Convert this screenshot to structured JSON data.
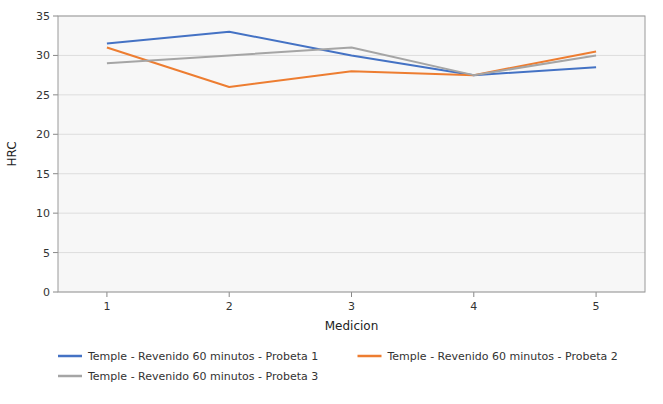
{
  "chart_data": {
    "type": "line",
    "x": [
      1,
      2,
      3,
      4,
      5
    ],
    "series": [
      {
        "name": "Temple - Revenido 60 minutos - Probeta 1",
        "color": "#4472C4",
        "values": [
          31.5,
          33.0,
          30.0,
          27.5,
          28.5
        ]
      },
      {
        "name": "Temple - Revenido 60 minutos - Probeta 2",
        "color": "#ED7D31",
        "values": [
          31.0,
          26.0,
          28.0,
          27.5,
          30.5
        ]
      },
      {
        "name": "Temple - Revenido 60 minutos - Probeta 3",
        "color": "#A5A5A5",
        "values": [
          29.0,
          30.0,
          31.0,
          27.5,
          30.0
        ]
      }
    ],
    "xlabel": "Medicion",
    "ylabel": "HRC",
    "xlim": [
      0.6,
      5.4
    ],
    "ylim": [
      0,
      35
    ],
    "xticks": [
      1,
      2,
      3,
      4,
      5
    ],
    "yticks": [
      0,
      5,
      10,
      15,
      20,
      25,
      30,
      35
    ],
    "grid": "y",
    "legend": "bottom"
  }
}
